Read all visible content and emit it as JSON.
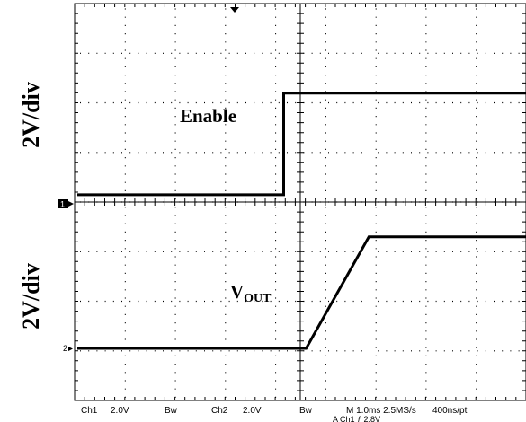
{
  "chart_data": {
    "type": "line",
    "axes": {
      "y_label_top": "2V/div",
      "y_label_bottom": "2V/div"
    },
    "series": [
      {
        "name": "Enable",
        "points": [
          [
            0,
            0.4
          ],
          [
            4.6,
            0.4
          ],
          [
            4.6,
            4.5
          ],
          [
            10,
            4.5
          ]
        ]
      },
      {
        "name": "VOUT",
        "name_main": "V",
        "name_sub": "OUT",
        "points": [
          [
            0,
            0
          ],
          [
            5.1,
            0
          ],
          [
            6.5,
            4.5
          ],
          [
            10,
            4.5
          ]
        ]
      }
    ],
    "channel_markers": [
      "1",
      "2"
    ],
    "status_bar": {
      "ch1": "Ch1",
      "ch1_scale": "2.0V",
      "ch1_bw": "Bw",
      "ch2": "Ch2",
      "ch2_scale": "2.0V",
      "ch2_bw": "Bw",
      "timebase": "M 1.0ms 2.5MS/s",
      "pt": "400ns/pt",
      "trigger": "A Ch1  ƒ 2.8V"
    }
  }
}
